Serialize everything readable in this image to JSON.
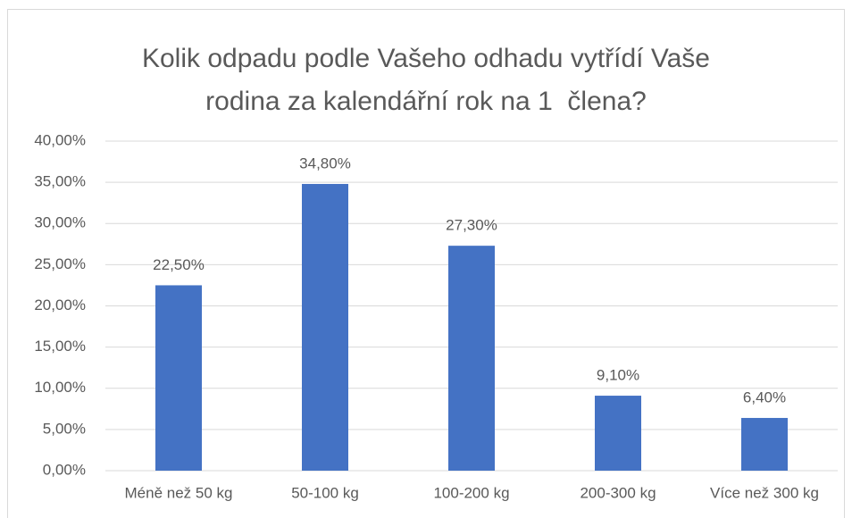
{
  "chart_data": {
    "type": "bar",
    "title": "Kolik odpadu podle Vašeho odhadu vytřídí Vaše rodina za kalendářní rok na 1  člena?",
    "categories": [
      "Méně než 50 kg",
      "50-100 kg",
      "100-200 kg",
      "200-300 kg",
      "Více než 300 kg"
    ],
    "values": [
      22.5,
      34.8,
      27.3,
      9.1,
      6.4
    ],
    "value_labels": [
      "22,50%",
      "34,80%",
      "27,30%",
      "9,10%",
      "6,40%"
    ],
    "color": "#4472c4",
    "ylim": [
      0,
      40
    ],
    "yticks": [
      {
        "value": 0,
        "label": "0,00%"
      },
      {
        "value": 5,
        "label": "5,00%"
      },
      {
        "value": 10,
        "label": "10,00%"
      },
      {
        "value": 15,
        "label": "15,00%"
      },
      {
        "value": 20,
        "label": "20,00%"
      },
      {
        "value": 25,
        "label": "25,00%"
      },
      {
        "value": 30,
        "label": "30,00%"
      },
      {
        "value": 35,
        "label": "35,00%"
      },
      {
        "value": 40,
        "label": "40,00%"
      }
    ],
    "grid": true
  }
}
